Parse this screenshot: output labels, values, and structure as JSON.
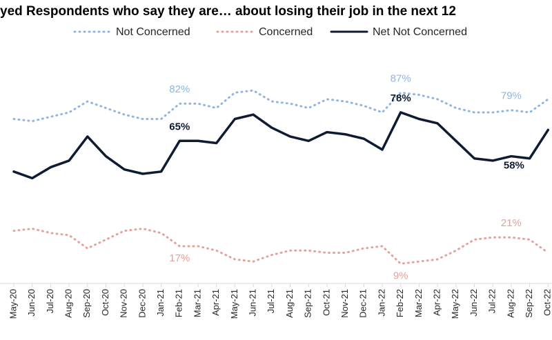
{
  "chart_data": {
    "type": "line",
    "title": "yed Respondents who say they are… about losing their job in the next 12",
    "categories": [
      "May-20",
      "Jun-20",
      "Jul-20",
      "Aug-20",
      "Sep-20",
      "Oct-20",
      "Nov-20",
      "Dec-20",
      "Jan-21",
      "Feb-21",
      "Mar-21",
      "Apr-21",
      "May-21",
      "Jun-21",
      "Jul-21",
      "Aug-21",
      "Sep-21",
      "Oct-21",
      "Nov-21",
      "Dec-21",
      "Jan-22",
      "Feb-22",
      "Mar-22",
      "Apr-22",
      "May-22",
      "Jun-22",
      "Jul-22",
      "Aug-22",
      "Sep-22",
      "Oct-22"
    ],
    "ylim": [
      0,
      100
    ],
    "series": [
      {
        "name": "Not Concerned",
        "color": "#8eb4e3",
        "dash": "dot",
        "values": [
          75,
          74,
          76,
          78,
          83,
          80,
          77,
          75,
          75,
          82,
          82,
          80,
          87,
          88,
          83,
          82,
          80,
          84,
          83,
          81,
          78,
          87,
          86,
          84,
          80,
          78,
          78,
          79,
          78,
          84
        ],
        "value_labels": [
          null,
          null,
          null,
          null,
          null,
          null,
          null,
          null,
          null,
          "82%",
          null,
          null,
          null,
          null,
          null,
          null,
          null,
          null,
          null,
          null,
          null,
          "87%",
          null,
          null,
          null,
          null,
          null,
          "79%",
          null,
          null
        ]
      },
      {
        "name": "Concerned",
        "color": "#e6a198",
        "dash": "dot",
        "values": [
          24,
          25,
          23,
          22,
          16,
          20,
          24,
          25,
          23,
          17,
          17,
          15,
          11,
          10,
          13,
          15,
          15,
          14,
          14,
          16,
          17,
          9,
          10,
          11,
          15,
          20,
          21,
          21,
          20,
          14
        ],
        "value_labels": [
          null,
          null,
          null,
          null,
          null,
          null,
          null,
          null,
          null,
          "17%",
          null,
          null,
          null,
          null,
          null,
          null,
          null,
          null,
          null,
          null,
          null,
          "9%",
          null,
          null,
          null,
          null,
          null,
          "21%",
          null,
          null
        ]
      },
      {
        "name": "Net Not Concerned",
        "color": "#0d1b33",
        "dash": "solid",
        "values": [
          51,
          48,
          53,
          56,
          67,
          58,
          52,
          50,
          51,
          65,
          65,
          64,
          75,
          77,
          71,
          67,
          65,
          69,
          68,
          66,
          61,
          78,
          75,
          73,
          65,
          57,
          56,
          58,
          57,
          70
        ],
        "value_labels": [
          null,
          null,
          null,
          null,
          null,
          null,
          null,
          null,
          null,
          "65%",
          null,
          null,
          null,
          null,
          null,
          null,
          null,
          null,
          null,
          null,
          null,
          "78%",
          null,
          null,
          null,
          null,
          null,
          "58%",
          null,
          null
        ]
      }
    ]
  }
}
